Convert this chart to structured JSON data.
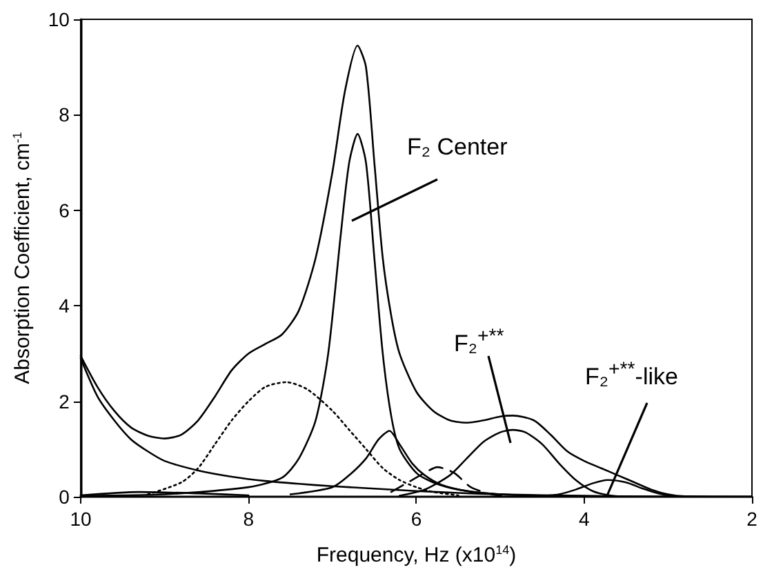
{
  "chart_data": {
    "type": "line",
    "xlabel": "Frequency, Hz (x10$^{14}$)",
    "ylabel": "Absorption Coefficient, cm$^{-1}$",
    "xlim": [
      10,
      2
    ],
    "xticks": [
      10,
      8,
      6,
      4,
      2
    ],
    "ylim": [
      0,
      10
    ],
    "yticks": [
      0,
      2,
      4,
      6,
      8,
      10
    ],
    "grid": false,
    "marker": "none",
    "annotations": [
      "F₂ Center",
      "F₂$^{+**}$",
      {
        "text": "F₂$^{+**}$-like",
        "x": 3.72,
        "y": 0.05
      }
    ],
    "series": [
      {
        "color": "#000000",
        "line_style": "solid",
        "x": [
          10,
          9.8,
          9.6,
          9.4,
          9.2,
          9.0,
          8.8,
          8.6,
          8.4,
          8.2,
          8.0,
          7.8,
          7.6,
          7.4,
          7.2,
          7.0,
          6.85,
          6.7,
          6.6,
          6.5,
          6.4,
          6.3,
          6.2,
          6.0,
          5.8,
          5.6,
          5.4,
          5.2,
          5.0,
          4.85,
          4.6,
          4.4,
          4.2,
          4.0,
          3.8,
          3.6,
          3.4,
          3.2,
          3.0,
          2.8,
          2.0
        ],
        "values": [
          2.95,
          2.3,
          1.8,
          1.45,
          1.28,
          1.22,
          1.3,
          1.6,
          2.1,
          2.65,
          3.0,
          3.2,
          3.4,
          3.9,
          5.0,
          6.8,
          8.5,
          9.45,
          9.0,
          7.0,
          5.0,
          3.8,
          3.0,
          2.2,
          1.8,
          1.6,
          1.55,
          1.6,
          1.68,
          1.7,
          1.6,
          1.3,
          0.95,
          0.75,
          0.6,
          0.45,
          0.3,
          0.15,
          0.05,
          0.01,
          0
        ]
      },
      {
        "color": "#000000",
        "line_style": "solid",
        "x": [
          10,
          9.8,
          9.6,
          9.4,
          9.2,
          9.0,
          8.6,
          8.2,
          7.8,
          7.4,
          7.0,
          6.5,
          6.0,
          5.5,
          5.0,
          4.0,
          3.0,
          2.0
        ],
        "values": [
          2.9,
          2.1,
          1.6,
          1.2,
          0.95,
          0.75,
          0.55,
          0.42,
          0.33,
          0.27,
          0.22,
          0.17,
          0.12,
          0.08,
          0.05,
          0.02,
          0,
          0
        ]
      },
      {
        "color": "#000000",
        "line_style": "solid",
        "x": [
          10,
          9.0,
          8.0,
          7.6,
          7.4,
          7.2,
          7.05,
          6.9,
          6.8,
          6.7,
          6.6,
          6.5,
          6.4,
          6.3,
          6.2,
          6.0,
          5.8,
          5.5,
          5.0,
          4.0,
          2.0
        ],
        "values": [
          0.02,
          0.05,
          0.2,
          0.4,
          0.8,
          1.6,
          3.0,
          5.5,
          7.0,
          7.6,
          7.0,
          5.0,
          3.0,
          1.7,
          1.0,
          0.5,
          0.3,
          0.15,
          0.05,
          0.01,
          0
        ]
      },
      {
        "color": "#000000",
        "line_style": "dotted",
        "x": [
          9.2,
          8.8,
          8.6,
          8.4,
          8.2,
          8.0,
          7.8,
          7.55,
          7.3,
          7.0,
          6.8,
          6.6,
          6.4,
          6.2,
          6.0,
          5.8,
          5.5
        ],
        "values": [
          0.05,
          0.3,
          0.6,
          1.1,
          1.6,
          2.0,
          2.3,
          2.4,
          2.25,
          1.8,
          1.4,
          1.0,
          0.6,
          0.35,
          0.2,
          0.1,
          0.03
        ]
      },
      {
        "color": "#000000",
        "line_style": "solid",
        "x": [
          7.5,
          7.0,
          6.8,
          6.6,
          6.45,
          6.32,
          6.2,
          6.05,
          5.9,
          5.7,
          5.4,
          5.0,
          4.5
        ],
        "values": [
          0.05,
          0.2,
          0.45,
          0.8,
          1.2,
          1.38,
          1.1,
          0.7,
          0.45,
          0.25,
          0.12,
          0.05,
          0.02
        ]
      },
      {
        "color": "#000000",
        "line_style": "dashed",
        "x": [
          6.3,
          6.1,
          5.9,
          5.75,
          5.55,
          5.35,
          5.1,
          4.9
        ],
        "values": [
          0.1,
          0.3,
          0.5,
          0.62,
          0.5,
          0.2,
          0.05,
          0
        ]
      },
      {
        "color": "#000000",
        "line_style": "solid",
        "x": [
          6.2,
          5.9,
          5.6,
          5.4,
          5.2,
          5.0,
          4.85,
          4.7,
          4.5,
          4.3,
          4.1,
          3.9,
          3.7,
          3.5
        ],
        "values": [
          0.02,
          0.15,
          0.45,
          0.8,
          1.15,
          1.35,
          1.4,
          1.35,
          1.1,
          0.7,
          0.35,
          0.12,
          0.03,
          0
        ]
      },
      {
        "color": "#000000",
        "line_style": "solid",
        "x": [
          4.6,
          4.3,
          4.1,
          3.9,
          3.72,
          3.5,
          3.3,
          3.1,
          2.9,
          2.7
        ],
        "values": [
          0,
          0.05,
          0.15,
          0.28,
          0.35,
          0.3,
          0.17,
          0.06,
          0.01,
          0
        ]
      },
      {
        "color": "#000000",
        "line_style": "solid",
        "x": [
          10,
          9.3,
          8.6,
          8.0
        ],
        "values": [
          0.03,
          0.1,
          0.07,
          0.03
        ]
      }
    ]
  }
}
